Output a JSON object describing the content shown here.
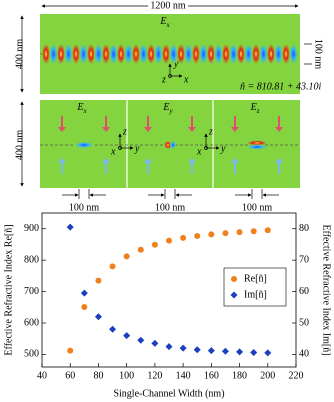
{
  "figure": {
    "top_panel": {
      "width_label": "1200 nm",
      "field": {
        "base": "E",
        "sub": "x"
      },
      "height_label": "400 nm",
      "gap_label": "100 nm",
      "index_label": "ñ = 810.81 + 43.10i",
      "axes": {
        "x": "x",
        "y": "y",
        "z": "z"
      }
    },
    "bottom_panel": {
      "height_label": "400 nm",
      "modes": [
        {
          "field": {
            "base": "E",
            "sub": "x"
          },
          "width_label": "100 nm"
        },
        {
          "field": {
            "base": "E",
            "sub": "y"
          },
          "width_label": "100 nm"
        },
        {
          "field": {
            "base": "E",
            "sub": "z"
          },
          "width_label": "100 nm"
        }
      ],
      "axes": [
        {
          "x": "x",
          "y": "y",
          "z": "z"
        },
        {
          "x": "x",
          "y": "y",
          "z": "z"
        }
      ]
    }
  },
  "chart_data": {
    "type": "scatter",
    "xlabel": "Single-Channel Width (nm)",
    "ylabel": "Effective Refractive Index Re[ñ]",
    "y2label": "Effective Refractive Index Im[ñ]",
    "x": [
      60,
      70,
      80,
      90,
      100,
      110,
      120,
      130,
      140,
      150,
      160,
      170,
      180,
      190,
      200
    ],
    "series": [
      {
        "name": "Re[ñ]",
        "color": "#f07f1e",
        "marker": "circle",
        "values": [
          512,
          651,
          735,
          780,
          812,
          833,
          849,
          862,
          871,
          877,
          882,
          886,
          889,
          892,
          895
        ]
      },
      {
        "name": "Im[ñ]",
        "color": "#1b3fbf",
        "marker": "diamond",
        "axis": "y2",
        "values": [
          80.5,
          59.5,
          52,
          48,
          46,
          44.5,
          43.5,
          42.5,
          42,
          41.5,
          41.2,
          41,
          40.8,
          40.6,
          40.5
        ]
      }
    ],
    "xlim": [
      40,
      220
    ],
    "xticks": [
      40,
      60,
      80,
      100,
      120,
      140,
      160,
      180,
      200,
      220
    ],
    "ylim": [
      460,
      950
    ],
    "yticks": [
      500,
      600,
      700,
      800,
      900
    ],
    "y2lim": [
      36,
      85
    ],
    "y2ticks": [
      40,
      50,
      60,
      70,
      80
    ],
    "legend": "center right"
  }
}
